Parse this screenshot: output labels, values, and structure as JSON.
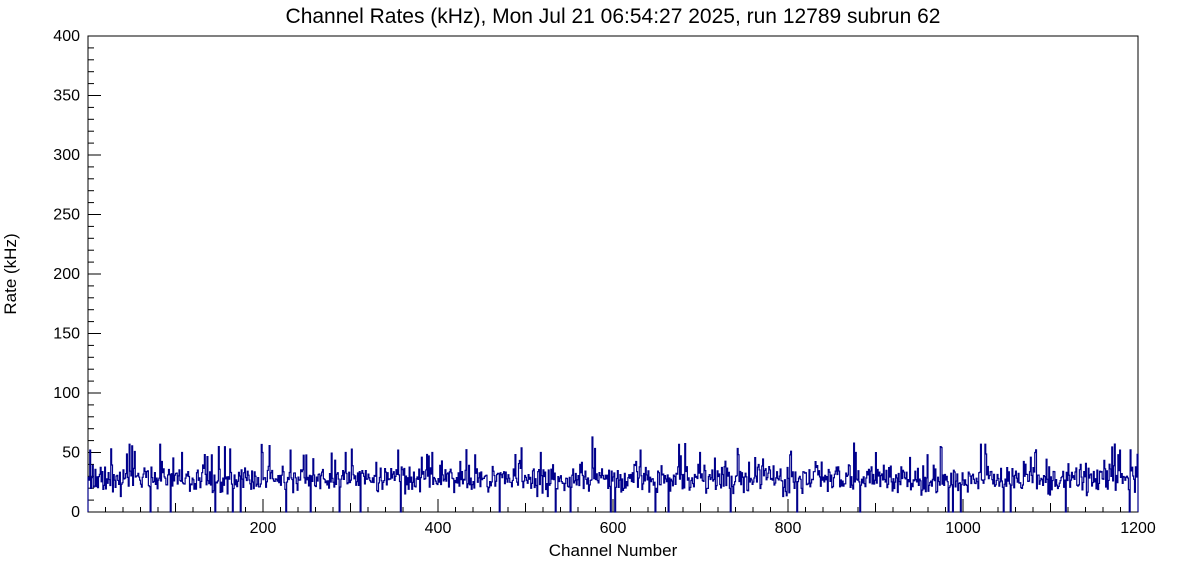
{
  "page": {
    "background": "#ffffff"
  },
  "chart_data": {
    "type": "line",
    "subtype": "histogram-step",
    "title": "Channel Rates (kHz), Mon Jul 21 06:54:27 2025, run 12789 subrun 62",
    "xlabel": "Channel Number",
    "ylabel": "Rate (kHz)",
    "xlim": [
      0,
      1200
    ],
    "ylim": [
      0,
      400
    ],
    "x_major_ticks": [
      200,
      400,
      600,
      800,
      1000,
      1200
    ],
    "x_medium_step": 100,
    "x_minor_step": 20,
    "y_major_ticks": [
      0,
      50,
      100,
      150,
      200,
      250,
      300,
      350,
      400
    ],
    "y_minor_step": 10,
    "grid": false,
    "legend": "none",
    "frame_color": "#000000",
    "tick_color": "#000000",
    "series": [
      {
        "name": "channel rates",
        "color": "#00008B",
        "line_width": 1.2,
        "n_points": 1200,
        "summary": {
          "typical_range_kHz": [
            15,
            45
          ],
          "mean_kHz": 28,
          "max_kHz": 63,
          "min_kHz": 0,
          "description": "Dense noisy band of per-channel rates around 20-40 kHz across all 1200 channels, with occasional spikes up to ~63 kHz and occasional dead channels dropping to 0"
        },
        "reconstruction": {
          "seed": 12789,
          "baseline_mean": 28,
          "baseline_sd": 6,
          "baseline_min": 13,
          "baseline_max": 46,
          "spike_probability": 0.035,
          "spike_min": 45,
          "spike_max": 58,
          "dropout_probability": 0.008
        },
        "notable_spikes": [
          {
            "x": 2,
            "v": 52
          },
          {
            "x": 82,
            "v": 57
          },
          {
            "x": 149,
            "v": 55
          },
          {
            "x": 162,
            "v": 53
          },
          {
            "x": 199,
            "v": 50
          },
          {
            "x": 231,
            "v": 52
          },
          {
            "x": 294,
            "v": 50
          },
          {
            "x": 354,
            "v": 52
          },
          {
            "x": 393,
            "v": 50
          },
          {
            "x": 442,
            "v": 48
          },
          {
            "x": 517,
            "v": 50
          },
          {
            "x": 576,
            "v": 63
          },
          {
            "x": 631,
            "v": 52
          },
          {
            "x": 699,
            "v": 50
          },
          {
            "x": 802,
            "v": 48
          },
          {
            "x": 877,
            "v": 50
          },
          {
            "x": 974,
            "v": 55
          },
          {
            "x": 1025,
            "v": 57
          },
          {
            "x": 1082,
            "v": 50
          },
          {
            "x": 1179,
            "v": 52
          }
        ],
        "notable_dropouts": [
          71,
          145,
          174,
          254,
          311,
          357,
          470,
          534,
          597,
          663,
          734,
          810,
          882,
          988,
          1054,
          1117,
          1190
        ]
      }
    ]
  }
}
